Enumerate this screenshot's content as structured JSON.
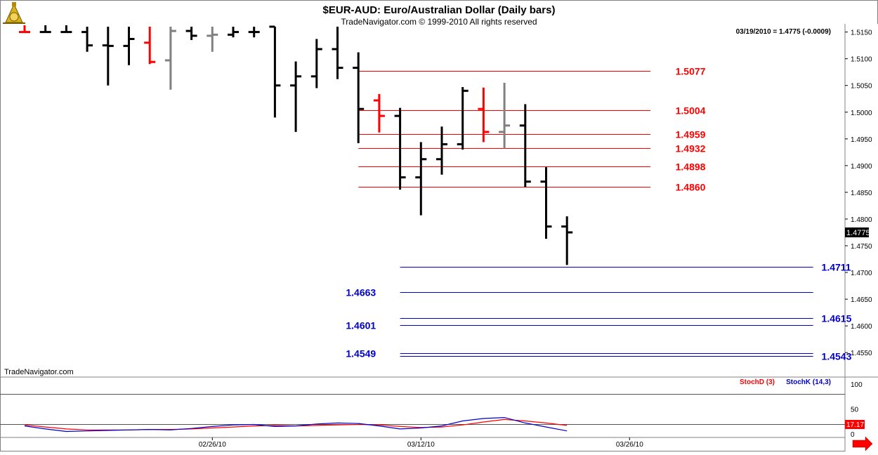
{
  "header": {
    "title": "$EUR-AUD:  Euro/Australian Dollar  (Daily bars)",
    "copyright": "TradeNavigator.com © 1999-2010 All rights reserved",
    "quote": "03/19/2010 = 1.4775 (-0.0009)",
    "watermark": "TradeNavigator.com"
  },
  "chart_data": [
    {
      "type": "ohlc",
      "ylim": [
        1.452,
        1.516
      ],
      "y_ticks": [
        "1.5150",
        "1.5100",
        "1.5050",
        "1.5000",
        "1.4950",
        "1.4900",
        "1.4850",
        "1.4800",
        "1.4750",
        "1.4700",
        "1.4650",
        "1.4600",
        "1.4550"
      ],
      "last_price": "1.4775",
      "x_tick_labels": [
        "02/26/10",
        "03/12/10",
        "03/26/10"
      ],
      "colors": {
        "up": "#000000",
        "down": "#000000",
        "red": "#ff0000",
        "gray": "#808080"
      },
      "bars": [
        {
          "i": 0,
          "o": 1.515,
          "h": 1.5165,
          "l": 1.515,
          "c": 1.515,
          "color": "red"
        },
        {
          "i": 1,
          "o": 1.515,
          "h": 1.5165,
          "l": 1.515,
          "c": 1.515,
          "color": "black"
        },
        {
          "i": 2,
          "o": 1.515,
          "h": 1.5165,
          "l": 1.515,
          "c": 1.515,
          "color": "black"
        },
        {
          "i": 3,
          "o": 1.515,
          "h": 1.516,
          "l": 1.5113,
          "c": 1.5125,
          "color": "black"
        },
        {
          "i": 4,
          "o": 1.5125,
          "h": 1.516,
          "l": 1.505,
          "c": 1.5124,
          "color": "black"
        },
        {
          "i": 5,
          "o": 1.5124,
          "h": 1.516,
          "l": 1.5088,
          "c": 1.5137,
          "color": "black"
        },
        {
          "i": 6,
          "o": 1.513,
          "h": 1.516,
          "l": 1.509,
          "c": 1.5094,
          "color": "red"
        },
        {
          "i": 7,
          "o": 1.5097,
          "h": 1.516,
          "l": 1.5042,
          "c": 1.5152,
          "color": "gray"
        },
        {
          "i": 8,
          "o": 1.5152,
          "h": 1.516,
          "l": 1.5135,
          "c": 1.5143,
          "color": "black"
        },
        {
          "i": 9,
          "o": 1.5143,
          "h": 1.516,
          "l": 1.5113,
          "c": 1.5145,
          "color": "gray"
        },
        {
          "i": 10,
          "o": 1.5145,
          "h": 1.516,
          "l": 1.514,
          "c": 1.515,
          "color": "black"
        },
        {
          "i": 11,
          "o": 1.515,
          "h": 1.516,
          "l": 1.514,
          "c": 1.515,
          "color": "black"
        },
        {
          "i": 12,
          "o": 1.516,
          "h": 1.516,
          "l": 1.499,
          "c": 1.505,
          "color": "black"
        },
        {
          "i": 13,
          "o": 1.505,
          "h": 1.5095,
          "l": 1.4963,
          "c": 1.5067,
          "color": "black"
        },
        {
          "i": 14,
          "o": 1.5067,
          "h": 1.5137,
          "l": 1.5045,
          "c": 1.5118,
          "color": "black"
        },
        {
          "i": 15,
          "o": 1.5118,
          "h": 1.516,
          "l": 1.5062,
          "c": 1.5083,
          "color": "black"
        },
        {
          "i": 16,
          "o": 1.5083,
          "h": 1.5112,
          "l": 1.4942,
          "c": 1.5006,
          "color": "black"
        },
        {
          "i": 17,
          "o": 1.5022,
          "h": 1.5034,
          "l": 1.4962,
          "c": 1.4993,
          "color": "red"
        },
        {
          "i": 18,
          "o": 1.4993,
          "h": 1.5008,
          "l": 1.4855,
          "c": 1.4878,
          "color": "black"
        },
        {
          "i": 19,
          "o": 1.4878,
          "h": 1.4944,
          "l": 1.4807,
          "c": 1.4912,
          "color": "black"
        },
        {
          "i": 20,
          "o": 1.4912,
          "h": 1.4973,
          "l": 1.4883,
          "c": 1.494,
          "color": "black"
        },
        {
          "i": 21,
          "o": 1.494,
          "h": 1.5047,
          "l": 1.493,
          "c": 1.504,
          "color": "black"
        },
        {
          "i": 22,
          "o": 1.5006,
          "h": 1.5046,
          "l": 1.4944,
          "c": 1.4963,
          "color": "red"
        },
        {
          "i": 23,
          "o": 1.4963,
          "h": 1.5055,
          "l": 1.4932,
          "c": 1.4975,
          "color": "gray"
        },
        {
          "i": 24,
          "o": 1.4975,
          "h": 1.5015,
          "l": 1.486,
          "c": 1.487,
          "color": "black"
        },
        {
          "i": 25,
          "o": 1.487,
          "h": 1.4897,
          "l": 1.4763,
          "c": 1.4786,
          "color": "black"
        },
        {
          "i": 26,
          "o": 1.4786,
          "h": 1.4805,
          "l": 1.4714,
          "c": 1.4775,
          "color": "black"
        }
      ],
      "levels": [
        {
          "value": 1.5077,
          "label": "1.5077",
          "color": "#ff0000",
          "x0": 16,
          "x1": 30,
          "label_side": "right",
          "label_at": 31.2
        },
        {
          "value": 1.5004,
          "label": "1.5004",
          "color": "#ff0000",
          "x0": 16,
          "x1": 30,
          "label_side": "right",
          "label_at": 31.2
        },
        {
          "value": 1.4959,
          "label": "1.4959",
          "color": "#ff0000",
          "x0": 16,
          "x1": 30,
          "label_side": "right",
          "label_at": 31.2
        },
        {
          "value": 1.4932,
          "label": "1.4932",
          "color": "#ff0000",
          "x0": 16,
          "x1": 30,
          "label_side": "right",
          "label_at": 31.2
        },
        {
          "value": 1.4898,
          "label": "1.4898",
          "color": "#ff0000",
          "x0": 16,
          "x1": 30,
          "label_side": "right",
          "label_at": 31.2
        },
        {
          "value": 1.486,
          "label": "1.4860",
          "color": "#ff0000",
          "x0": 16,
          "x1": 30,
          "label_side": "right",
          "label_at": 31.2
        },
        {
          "value": 1.4711,
          "label": "1.4711",
          "color": "#0000cc",
          "x0": 18,
          "x1": 37.8,
          "label_side": "right",
          "label_at": 38.2
        },
        {
          "value": 1.4663,
          "label": "1.4663",
          "color": "#0000cc",
          "x0": 18,
          "x1": 37.8,
          "label_side": "left",
          "label_at": 15.4
        },
        {
          "value": 1.4615,
          "label": "1.4615",
          "color": "#0000cc",
          "x0": 18,
          "x1": 37.8,
          "label_side": "right",
          "label_at": 38.2
        },
        {
          "value": 1.4601,
          "label": "1.4601",
          "color": "#0000cc",
          "x0": 18,
          "x1": 37.8,
          "label_side": "left",
          "label_at": 15.4
        },
        {
          "value": 1.4549,
          "label": "1.4549",
          "color": "#0000cc",
          "x0": 18,
          "x1": 37.8,
          "label_side": "left",
          "label_at": 15.4
        },
        {
          "value": 1.4543,
          "label": "1.4543",
          "color": "#0000cc",
          "x0": 18,
          "x1": 37.8,
          "label_side": "right",
          "label_at": 38.2
        }
      ]
    },
    {
      "type": "line",
      "ylim": [
        0,
        100
      ],
      "y_ticks": [
        "100",
        "50",
        "0"
      ],
      "ref_lines": [
        80,
        20
      ],
      "last_value": "17.17",
      "legend": [
        "StochD (3)",
        "StochK (14,3)"
      ],
      "series": [
        {
          "name": "StochD (3)",
          "color": "#ff0000",
          "x": [
            0,
            1,
            2,
            3,
            4,
            5,
            6,
            7,
            8,
            9,
            10,
            11,
            12,
            13,
            14,
            15,
            16,
            17,
            18,
            19,
            20,
            21,
            22,
            23,
            24,
            25,
            26
          ],
          "values": [
            18,
            14,
            10,
            8,
            8,
            8,
            9,
            9,
            10,
            12,
            14,
            16,
            17,
            16,
            17,
            18,
            19,
            18,
            15,
            13,
            14,
            18,
            24,
            29,
            26,
            22,
            17
          ]
        },
        {
          "name": "StochK (14,3)",
          "color": "#0000cc",
          "x": [
            0,
            1,
            2,
            3,
            4,
            5,
            6,
            7,
            8,
            9,
            10,
            11,
            12,
            13,
            14,
            15,
            16,
            17,
            18,
            19,
            20,
            21,
            22,
            23,
            24,
            25,
            26
          ],
          "values": [
            16,
            10,
            5,
            6,
            7,
            8,
            9,
            8,
            11,
            15,
            18,
            19,
            15,
            16,
            20,
            22,
            21,
            16,
            10,
            12,
            16,
            26,
            31,
            33,
            22,
            14,
            6
          ]
        }
      ]
    }
  ]
}
